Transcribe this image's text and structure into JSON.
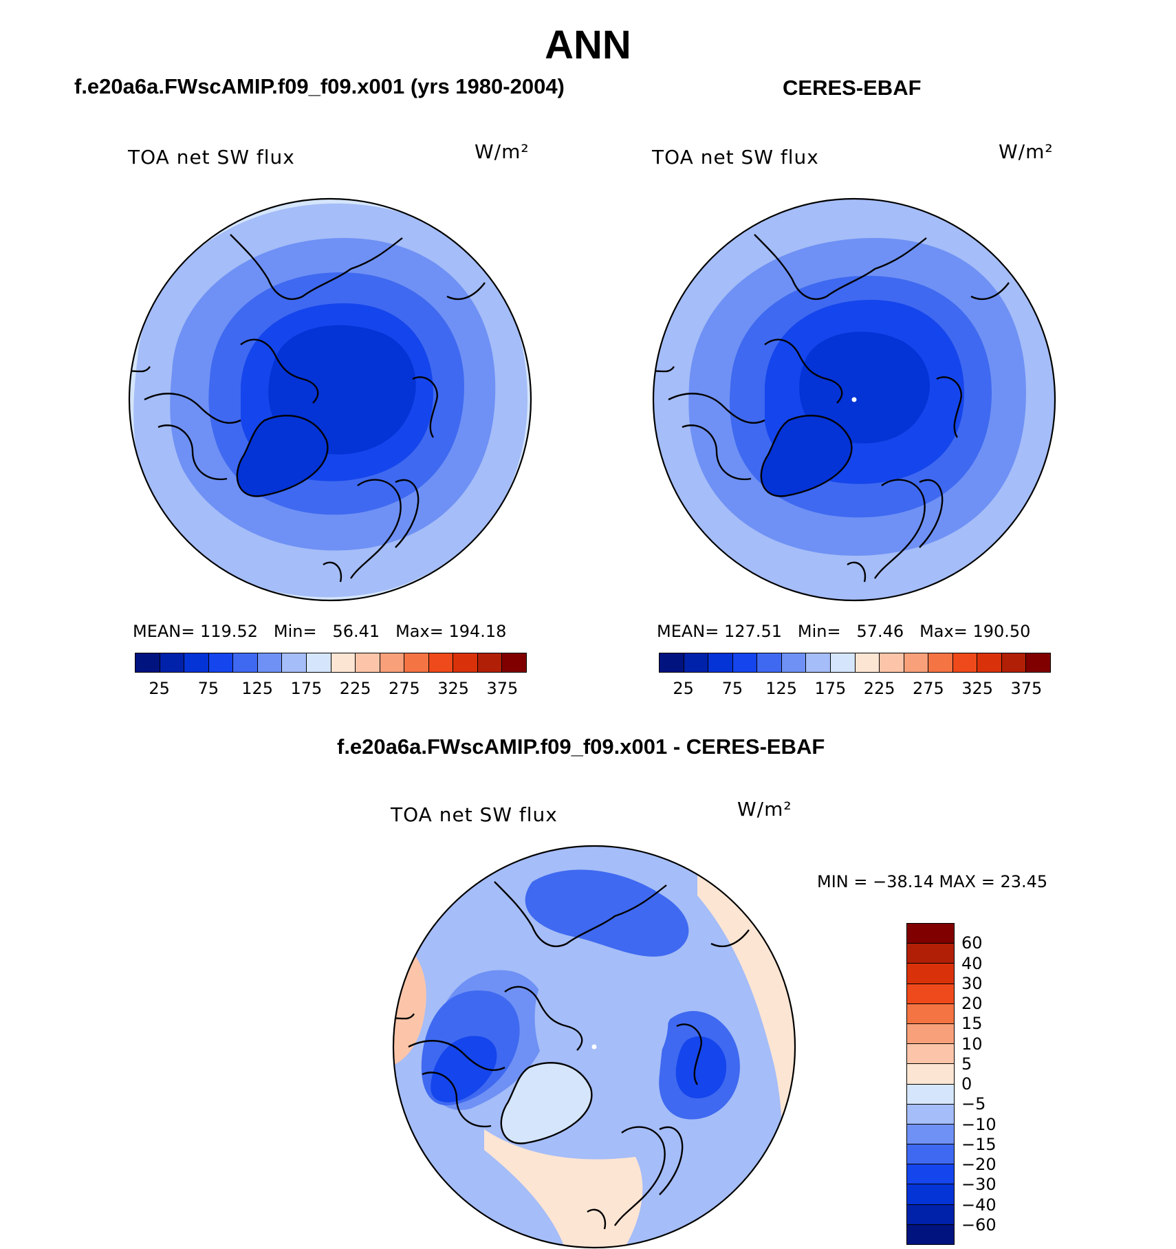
{
  "figure": {
    "title": "ANN",
    "units": "W/m²"
  },
  "panels": [
    {
      "case_title": "f.e20a6a.FWscAMIP.f09_f09.x001 (yrs 1980-2004)",
      "variable": "TOA net SW flux",
      "units": "W/m²",
      "stats": {
        "mean_label": "MEAN=",
        "mean": "119.52",
        "min_label": "Min=",
        "min": "56.41",
        "max_label": "Max=",
        "max": "194.18"
      }
    },
    {
      "case_title": "CERES-EBAF",
      "variable": "TOA net SW flux",
      "units": "W/m²",
      "stats": {
        "mean_label": "MEAN=",
        "mean": "127.51",
        "min_label": "Min=",
        "min": "57.46",
        "max_label": "Max=",
        "max": "190.50"
      }
    },
    {
      "case_title": "f.e20a6a.FWscAMIP.f09_f09.x001 - CERES-EBAF",
      "variable": "TOA net SW flux",
      "units": "W/m²",
      "stats_text": "MIN = −38.14 MAX =  23.45"
    }
  ],
  "colorbar_abs": {
    "colors": [
      "#00137f",
      "#0021a9",
      "#0433d6",
      "#1545ec",
      "#3f69f0",
      "#6f91f5",
      "#a5bdf8",
      "#d5e5fb",
      "#fde5d3",
      "#fcc5a9",
      "#f8a07a",
      "#f47443",
      "#ef4a1b",
      "#d9320a",
      "#b12006",
      "#800000"
    ],
    "labels": [
      "25",
      "75",
      "125",
      "175",
      "225",
      "275",
      "325",
      "375"
    ]
  },
  "colorbar_diff": {
    "colors": [
      "#800000",
      "#b12006",
      "#d9320a",
      "#ef4a1b",
      "#f47443",
      "#f8a07a",
      "#fcc5a9",
      "#fde5d3",
      "#d5e5fb",
      "#a5bdf8",
      "#6f91f5",
      "#3f69f0",
      "#1545ec",
      "#0433d6",
      "#0021a9",
      "#00137f"
    ],
    "labels": [
      "60",
      "40",
      "30",
      "20",
      "15",
      "10",
      "5",
      "0",
      "−5",
      "−10",
      "−15",
      "−20",
      "−30",
      "−40",
      "−60"
    ]
  },
  "map_colors": {
    "c1": "#d5e5fb",
    "c2": "#a5bdf8",
    "c3": "#6f91f5",
    "c4": "#3f69f0",
    "c5": "#1545ec",
    "c6": "#0433d6",
    "pos1": "#fde5d3",
    "pos2": "#fcc5a9",
    "pos3": "#f8a07a"
  }
}
